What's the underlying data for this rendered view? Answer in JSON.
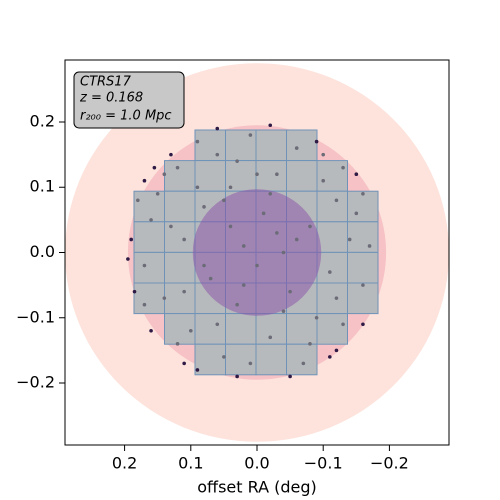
{
  "chart_data": {
    "type": "scatter",
    "xlabel": "offset RA (deg)",
    "xlim": [
      0.29,
      -0.29
    ],
    "ylim": [
      -0.295,
      0.295
    ],
    "xticks": [
      0.2,
      0.1,
      {
        "value": 0,
        "label": "0.0"
      },
      {
        "value": -0.1,
        "label": "−0.1"
      },
      {
        "value": -0.2,
        "label": "−0.2"
      }
    ],
    "yticks": [
      0.2,
      0.1,
      {
        "value": 0,
        "label": "0.0"
      },
      {
        "value": -0.1,
        "label": "−0.1"
      },
      {
        "value": -0.2,
        "label": "−0.2"
      }
    ],
    "annotation": [
      "CTRS17",
      "z = 0.168",
      "r₂₀₀ = 1.0 Mpc"
    ],
    "circles": [
      {
        "r": 0.29,
        "color": "#fde3dc",
        "alpha": 1
      },
      {
        "r": 0.195,
        "color": "#f7c2c5",
        "alpha": 1
      },
      {
        "r": 0.097,
        "color": "#8a4fa8",
        "alpha": 0.5
      }
    ],
    "tile_color": "#b7babd",
    "tile_edge": "#6f93b8",
    "series": [
      {
        "color": "#6c6c78",
        "x": [
          0.16,
          0.17,
          0.15,
          0.14,
          0.12,
          0.11,
          0.1,
          0.09,
          0.08,
          0.07,
          0.06,
          0.05,
          0.04,
          0.03,
          0.02,
          0.01,
          0.0,
          -0.01,
          -0.02,
          -0.03,
          -0.04,
          -0.05,
          -0.06,
          -0.07,
          -0.08,
          -0.09,
          -0.1,
          -0.11,
          -0.12,
          -0.13,
          -0.14,
          -0.15,
          -0.16,
          -0.17,
          0.13,
          0.11,
          0.09,
          0.06,
          0.04,
          0.02,
          -0.02,
          -0.04,
          -0.06,
          -0.08,
          -0.1,
          0.18,
          0.17,
          -0.16,
          0.0,
          0.01,
          0.08,
          -0.03,
          0.05,
          -0.12,
          0.14,
          -0.13,
          0.12,
          0.03
        ],
        "y": [
          0.05,
          -0.02,
          0.09,
          -0.07,
          0.13,
          0.02,
          -0.12,
          0.17,
          0.07,
          -0.04,
          0.15,
          -0.16,
          0.1,
          -0.08,
          0.01,
          0.18,
          -0.02,
          0.06,
          -0.13,
          0.12,
          0.0,
          -0.06,
          0.16,
          -0.17,
          0.04,
          -0.1,
          0.11,
          -0.03,
          0.08,
          -0.11,
          0.02,
          0.06,
          -0.05,
          0.01,
          0.04,
          -0.06,
          0.1,
          -0.11,
          0.04,
          -0.05,
          0.09,
          -0.09,
          0.02,
          -0.14,
          0.15,
          0.08,
          -0.08,
          0.09,
          0.12,
          -0.17,
          -0.02,
          0.03,
          0.08,
          -0.07,
          0.12,
          0.13,
          -0.14,
          0.14
        ]
      },
      {
        "color": "#2e1a45",
        "x": [
          0.19,
          0.185,
          0.17,
          0.16,
          0.13,
          0.11,
          0.06,
          0.03,
          -0.02,
          -0.05,
          -0.09,
          -0.11,
          -0.15,
          -0.16,
          0.195,
          0.155,
          -0.12,
          0.09
        ],
        "y": [
          0.02,
          -0.06,
          0.11,
          -0.12,
          0.15,
          -0.17,
          0.19,
          -0.19,
          0.195,
          -0.19,
          0.17,
          -0.16,
          0.12,
          -0.11,
          -0.01,
          0.13,
          -0.15,
          -0.18
        ]
      }
    ]
  }
}
